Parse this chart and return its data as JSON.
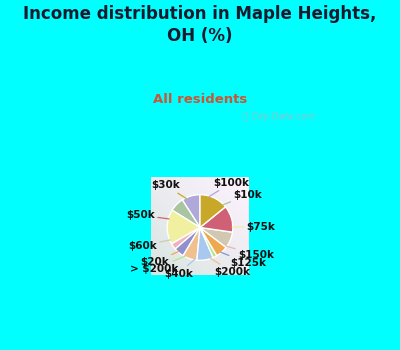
{
  "title": "Income distribution in Maple Heights,\nOH (%)",
  "subtitle": "All residents",
  "watermark": "ⓘ City-Data.com",
  "bg_cyan": "#00FFFF",
  "bg_chart_color": "#d4ede0",
  "labels": [
    "$100k",
    "$10k",
    "$75k",
    "$150k",
    "$125k",
    "$200k",
    "$40k",
    "> $200k",
    "$20k",
    "$60k",
    "$50k",
    "$30k"
  ],
  "values": [
    9,
    7,
    17,
    3,
    5,
    7,
    8,
    2,
    6,
    8,
    13,
    14
  ],
  "colors": [
    "#b0a8d8",
    "#a8c4a0",
    "#f0f0a0",
    "#f0b0c0",
    "#9090cc",
    "#f0c090",
    "#a8c8f0",
    "#b0e890",
    "#f0a850",
    "#d0c8b0",
    "#d06075",
    "#c8a828"
  ],
  "label_fontsize": 7.5,
  "title_fontsize": 12,
  "subtitle_fontsize": 9.5,
  "title_color": "#1a1a2e",
  "subtitle_color": "#cc5533",
  "watermark_color": "#aab8bb",
  "startangle": 90
}
